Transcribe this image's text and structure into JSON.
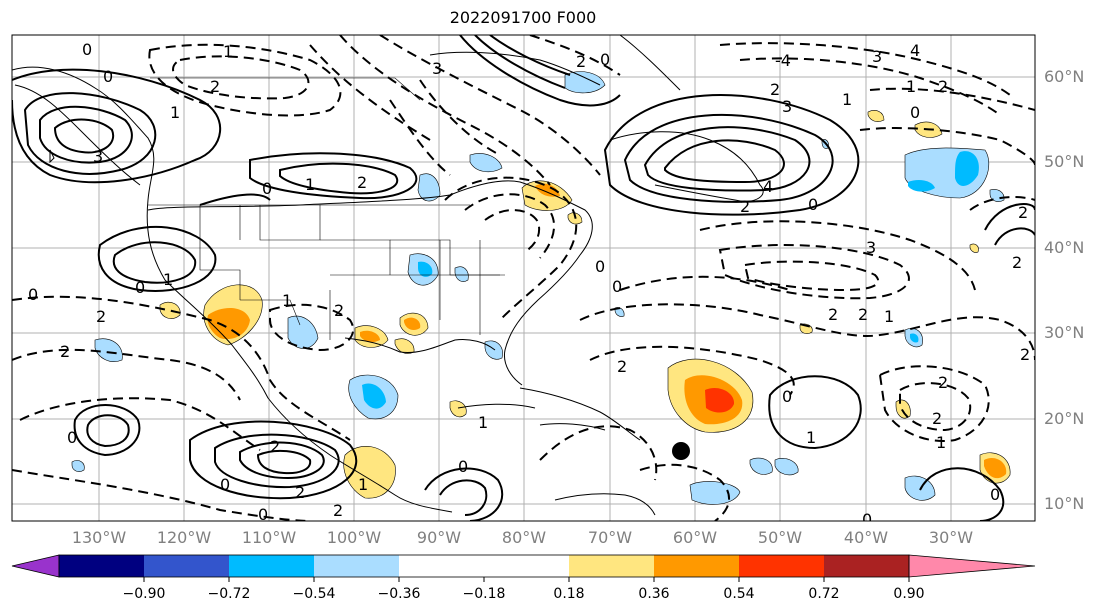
{
  "title": "2022091700 F000",
  "map": {
    "lat_labels": [
      "60°N",
      "50°N",
      "40°N",
      "30°N",
      "20°N",
      "10°N"
    ],
    "lon_labels": [
      "130°W",
      "120°W",
      "110°W",
      "100°W",
      "90°W",
      "80°W",
      "70°W",
      "60°W",
      "50°W",
      "40°W",
      "30°W"
    ],
    "contour_labels": [
      "0",
      "1",
      "2",
      "3",
      "4",
      "-1",
      "-2",
      "-3",
      "-4"
    ],
    "marker": {
      "name": "storm-center",
      "color": "#000000"
    }
  },
  "colorbar": {
    "ticks": [
      "−0.90",
      "−0.72",
      "−0.54",
      "−0.36",
      "−0.18",
      "0.18",
      "0.36",
      "0.54",
      "0.72",
      "0.90"
    ],
    "colors": [
      "#9933cc",
      "#000080",
      "#3355cc",
      "#00bbff",
      "#aaddff",
      "#ffffff",
      "#ffe680",
      "#ff9900",
      "#ff3300",
      "#aa2222",
      "#ff88aa"
    ]
  }
}
